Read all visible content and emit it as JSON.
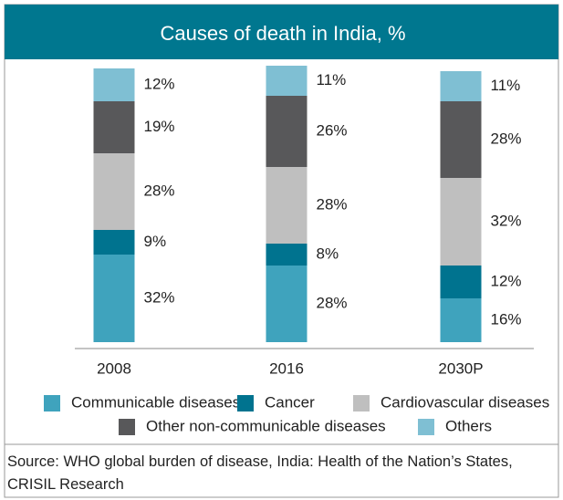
{
  "chart_data": {
    "type": "stacked_bar",
    "title": "Causes of death in India, %",
    "categories": [
      "2008",
      "2016",
      "2030P"
    ],
    "series": [
      {
        "name": "Communicable diseases",
        "color": "#3fa3bd",
        "values": [
          32,
          28,
          16
        ],
        "value_labels": [
          "32%",
          "28%",
          "16%"
        ]
      },
      {
        "name": "Cancer",
        "color": "#00738f",
        "values": [
          9,
          8,
          12
        ],
        "value_labels": [
          "9%",
          "8%",
          "12%"
        ]
      },
      {
        "name": "Cardiovascular diseases",
        "color": "#bfbfbf",
        "values": [
          28,
          28,
          32
        ],
        "value_labels": [
          "28%",
          "28%",
          "32%"
        ]
      },
      {
        "name": "Other non-communicable diseases",
        "color": "#58585a",
        "values": [
          19,
          26,
          28
        ],
        "value_labels": [
          "19%",
          "26%",
          "28%"
        ]
      },
      {
        "name": "Others",
        "color": "#7fbfd3",
        "values": [
          12,
          11,
          11
        ],
        "value_labels": [
          "12%",
          "11%",
          "11%"
        ]
      }
    ],
    "source": "Source: WHO global burden of disease, India: Health of the Nation’s States, CRISIL Research"
  }
}
